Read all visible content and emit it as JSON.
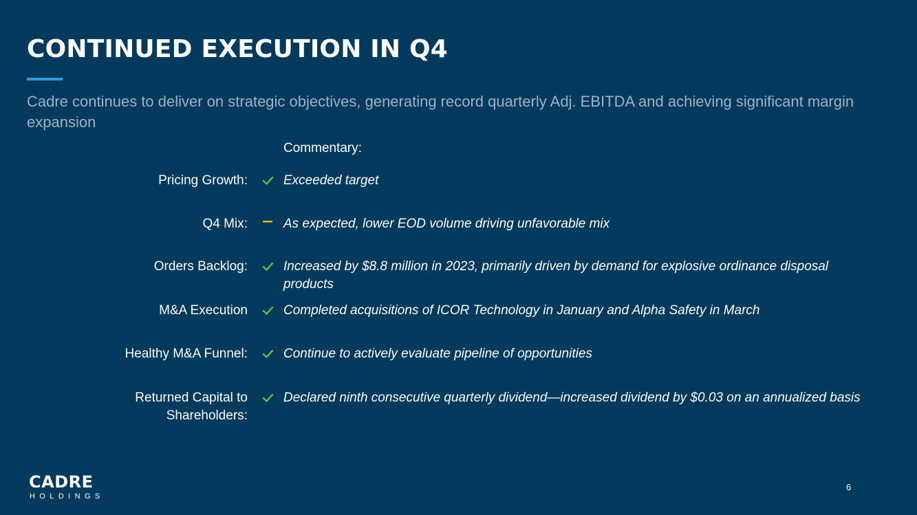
{
  "slide": {
    "title": "CONTINUED EXECUTION IN Q4",
    "subtitle": "Cadre continues to deliver on strategic objectives, generating record quarterly Adj. EBITDA and achieving significant margin expansion",
    "commentary_header": "Commentary:",
    "page_number": "6"
  },
  "colors": {
    "background": "#033a5e",
    "accent": "#2b9ad8",
    "check": "#7cc242",
    "dash": "#f2c500"
  },
  "rows": [
    {
      "label": "Pricing Growth:",
      "status": "check",
      "icon": "checkmark-icon",
      "text": "Exceeded target"
    },
    {
      "label": "Q4 Mix:",
      "status": "neutral",
      "icon": "dash-icon",
      "text": "As expected, lower EOD volume driving unfavorable mix"
    },
    {
      "label": "Orders Backlog:",
      "status": "check",
      "icon": "checkmark-icon",
      "text": "Increased by $8.8 million in 2023, primarily driven by demand for explosive ordinance disposal products"
    },
    {
      "label": "M&A Execution",
      "status": "check",
      "icon": "checkmark-icon",
      "text": "Completed acquisitions of ICOR Technology in January and Alpha Safety in March"
    },
    {
      "label": "Healthy M&A Funnel:",
      "status": "check",
      "icon": "checkmark-icon",
      "text": "Continue to actively evaluate pipeline of opportunities"
    },
    {
      "label": "Returned Capital to Shareholders:",
      "status": "check",
      "icon": "checkmark-icon",
      "text": "Declared ninth consecutive quarterly dividend—increased dividend by $0.03 on an annualized basis"
    }
  ],
  "logo": {
    "name": "CADRE",
    "subtitle": "HOLDINGS"
  }
}
